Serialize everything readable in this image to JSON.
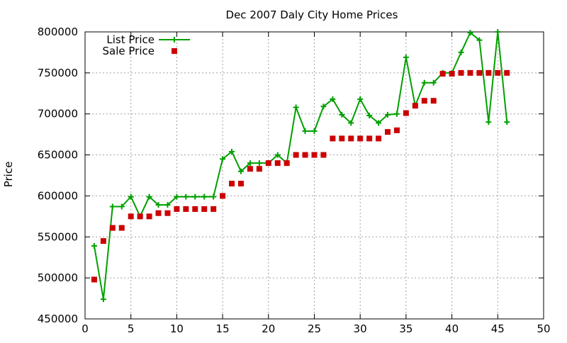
{
  "chart_data": {
    "type": "line",
    "title": "Dec 2007 Daly City Home Prices",
    "xlabel": "",
    "ylabel": "Price",
    "xlim": [
      0,
      50
    ],
    "ylim": [
      450000,
      800000
    ],
    "xticks": [
      0,
      5,
      10,
      15,
      20,
      25,
      30,
      35,
      40,
      45,
      50
    ],
    "yticks": [
      450000,
      500000,
      550000,
      600000,
      650000,
      700000,
      750000,
      800000
    ],
    "grid": true,
    "legend_position": "top-left",
    "x": [
      1,
      2,
      3,
      4,
      5,
      6,
      7,
      8,
      9,
      10,
      11,
      12,
      13,
      14,
      15,
      16,
      17,
      18,
      19,
      20,
      21,
      22,
      23,
      24,
      25,
      26,
      27,
      28,
      29,
      30,
      31,
      32,
      33,
      34,
      35,
      36,
      37,
      38,
      39,
      40,
      41,
      42,
      43,
      44,
      45,
      46
    ],
    "series": [
      {
        "name": "List Price",
        "style": "line-plus",
        "color": "#00a000",
        "values": [
          539000,
          474000,
          587000,
          587000,
          599000,
          575000,
          599000,
          589000,
          589000,
          599000,
          599000,
          599000,
          599000,
          599000,
          645000,
          654000,
          630000,
          640000,
          640000,
          640000,
          650000,
          640000,
          708000,
          679000,
          679000,
          709000,
          718000,
          699000,
          689000,
          718000,
          698000,
          689000,
          699000,
          700000,
          769000,
          710000,
          738000,
          738000,
          750000,
          750000,
          775000,
          799000,
          790000,
          690000,
          800000,
          690000
        ]
      },
      {
        "name": "Sale Price",
        "style": "square",
        "color": "#cc0000",
        "values": [
          498000,
          545000,
          561000,
          561000,
          575000,
          575000,
          575000,
          579000,
          579000,
          584000,
          584000,
          584000,
          584000,
          584000,
          600000,
          615000,
          615000,
          633000,
          633000,
          640000,
          640000,
          640000,
          650000,
          650000,
          650000,
          650000,
          670000,
          670000,
          670000,
          670000,
          670000,
          670000,
          678000,
          680000,
          701000,
          710000,
          716000,
          716000,
          749000,
          749000,
          750000,
          750000,
          750000,
          750000,
          750000,
          750000
        ]
      }
    ]
  }
}
